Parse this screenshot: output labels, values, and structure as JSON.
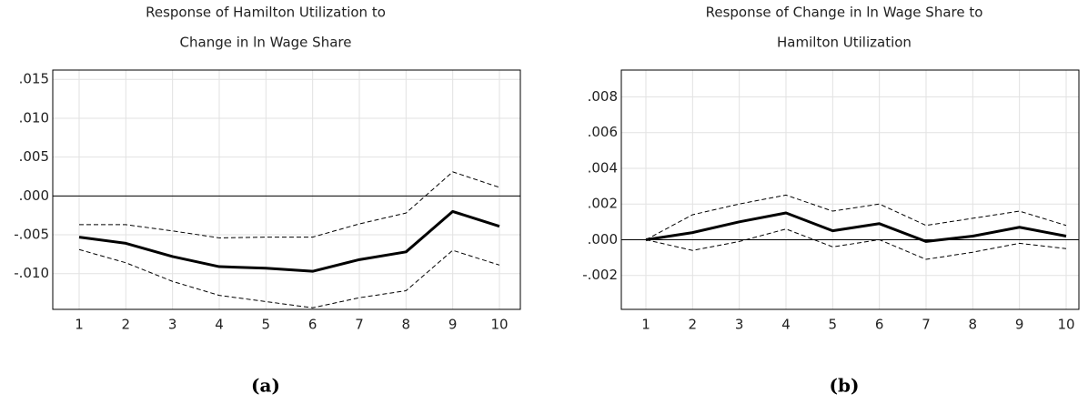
{
  "chart_data": [
    {
      "type": "line",
      "title": [
        "Response of Hamilton Utilization to",
        "Change in ln Wage Share"
      ],
      "caption": "(a)",
      "categories": [
        "1",
        "2",
        "3",
        "4",
        "5",
        "6",
        "7",
        "8",
        "9",
        "10"
      ],
      "ylim": [
        -0.0146,
        0.0162
      ],
      "yticks": [
        {
          "value": -0.01,
          "label": "-.010"
        },
        {
          "value": -0.005,
          "label": "-.005"
        },
        {
          "value": 0,
          "label": ".000"
        },
        {
          "value": 0.005,
          "label": ".005"
        },
        {
          "value": 0.01,
          "label": ".010"
        },
        {
          "value": 0.015,
          "label": ".015"
        }
      ],
      "grid": true,
      "series": [
        {
          "color": "#000000",
          "dashed": false,
          "values": [
            -0.0053,
            -0.0061,
            -0.0078,
            -0.0091,
            -0.0093,
            -0.0097,
            -0.0082,
            -0.0072,
            -0.002,
            -0.0039
          ]
        },
        {
          "color": "#000000",
          "dashed": true,
          "values": [
            -0.0037,
            -0.0037,
            -0.0045,
            -0.0054,
            -0.0053,
            -0.0053,
            -0.0036,
            -0.0022,
            0.0031,
            0.0011
          ]
        },
        {
          "color": "#000000",
          "dashed": true,
          "values": [
            -0.0069,
            -0.0086,
            -0.011,
            -0.0128,
            -0.0136,
            -0.0144,
            -0.0131,
            -0.0122,
            -0.007,
            -0.0089
          ]
        }
      ]
    },
    {
      "type": "line",
      "title": [
        "Response of Change in ln Wage Share to",
        "Hamilton Utilization"
      ],
      "caption": "(b)",
      "categories": [
        "1",
        "2",
        "3",
        "4",
        "5",
        "6",
        "7",
        "8",
        "9",
        "10"
      ],
      "ylim": [
        -0.0039,
        0.0095
      ],
      "yticks": [
        {
          "value": -0.002,
          "label": "-.002"
        },
        {
          "value": 0,
          "label": ".000"
        },
        {
          "value": 0.002,
          "label": ".002"
        },
        {
          "value": 0.004,
          "label": ".004"
        },
        {
          "value": 0.006,
          "label": ".006"
        },
        {
          "value": 0.008,
          "label": ".008"
        }
      ],
      "grid": true,
      "series": [
        {
          "color": "#000000",
          "dashed": false,
          "values": [
            0,
            0.0004,
            0.001,
            0.0015,
            0.0005,
            0.0009,
            -0.0001,
            0.0002,
            0.0007,
            0.0002
          ]
        },
        {
          "color": "#000000",
          "dashed": true,
          "values": [
            0,
            0.0014,
            0.002,
            0.0025,
            0.0016,
            0.002,
            0.0008,
            0.0012,
            0.0016,
            0.0008
          ]
        },
        {
          "color": "#000000",
          "dashed": true,
          "values": [
            0,
            -0.0006,
            -0.0001,
            0.0006,
            -0.0004,
            0.0,
            -0.0011,
            -0.0007,
            -0.0002,
            -0.0005
          ]
        }
      ]
    }
  ]
}
